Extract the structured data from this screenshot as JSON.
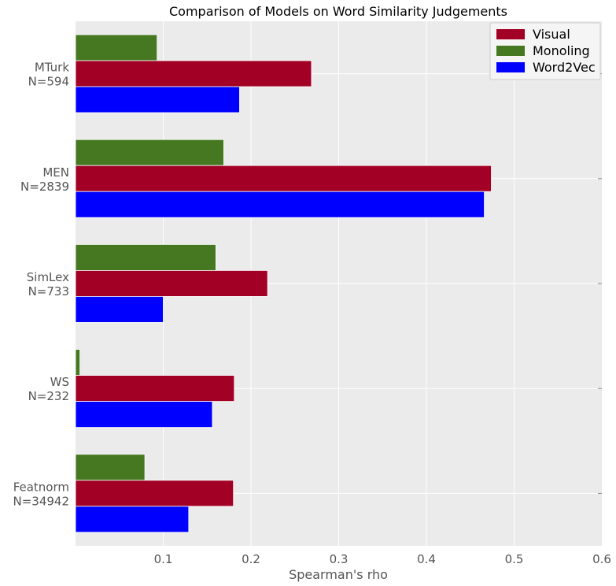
{
  "chart_data": {
    "type": "bar",
    "orientation": "horizontal",
    "title": "Comparison of Models on Word Similarity Judgements",
    "xlabel": "Spearman's rho",
    "ylabel": "",
    "xlim": [
      0,
      0.6
    ],
    "xticks": [
      "0.1",
      "0.2",
      "0.3",
      "0.4",
      "0.5",
      "0.6"
    ],
    "grid": true,
    "legend_position": "top-right",
    "categories": [
      [
        "MTurk",
        "N=594"
      ],
      [
        "MEN",
        "N=2839"
      ],
      [
        "SimLex",
        "N=733"
      ],
      [
        "WS",
        "N=232"
      ],
      [
        "Featnorm",
        "N=34942"
      ]
    ],
    "series": [
      {
        "name": "Visual",
        "color": "#a20025",
        "values": [
          0.269,
          0.474,
          0.219,
          0.181,
          0.18
        ]
      },
      {
        "name": "Monoling",
        "color": "#467821",
        "values": [
          0.093,
          0.169,
          0.16,
          0.005,
          0.079
        ]
      },
      {
        "name": "Word2Vec",
        "color": "#0000ff",
        "values": [
          0.187,
          0.466,
          0.1,
          0.156,
          0.129
        ]
      }
    ]
  }
}
